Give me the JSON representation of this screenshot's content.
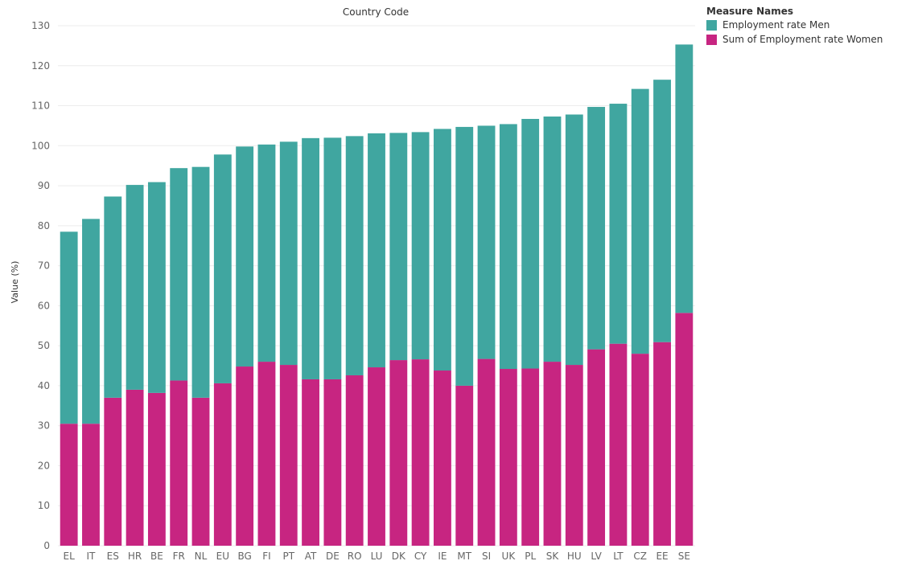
{
  "chart_data": {
    "type": "bar",
    "stacked": true,
    "title": "Country Code",
    "ylabel": "Value (%)",
    "xlabel": "",
    "ylim": [
      0,
      130
    ],
    "yticks": [
      0,
      10,
      20,
      30,
      40,
      50,
      60,
      70,
      80,
      90,
      100,
      110,
      120,
      130
    ],
    "grid": true,
    "legend_position": "top-right",
    "legend_title": "Measure Names",
    "categories": [
      "EL",
      "IT",
      "ES",
      "HR",
      "BE",
      "FR",
      "NL",
      "EU",
      "BG",
      "FI",
      "PT",
      "AT",
      "DE",
      "RO",
      "LU",
      "DK",
      "CY",
      "IE",
      "MT",
      "SI",
      "UK",
      "PL",
      "SK",
      "HU",
      "LV",
      "LT",
      "CZ",
      "EE",
      "SE"
    ],
    "series": [
      {
        "name": "Sum of Employment rate Women",
        "color": "#c72581",
        "values": [
          30.5,
          30.5,
          37.0,
          39.0,
          38.2,
          41.3,
          37.0,
          40.6,
          44.8,
          46.0,
          45.2,
          41.6,
          41.6,
          42.6,
          44.6,
          46.4,
          46.6,
          43.8,
          40.0,
          46.7,
          44.2,
          44.3,
          46.0,
          45.2,
          49.1,
          50.5,
          48.0,
          50.9,
          58.2
        ]
      },
      {
        "name": "Employment rate Men",
        "color": "#40a6a0",
        "values": [
          48.0,
          51.2,
          50.3,
          51.2,
          52.7,
          53.1,
          57.7,
          57.2,
          55.0,
          54.3,
          55.8,
          60.3,
          60.4,
          59.8,
          58.5,
          56.8,
          56.8,
          60.4,
          64.7,
          58.3,
          61.2,
          62.4,
          61.3,
          62.6,
          60.6,
          60.0,
          66.2,
          65.6,
          67.1
        ]
      }
    ]
  }
}
